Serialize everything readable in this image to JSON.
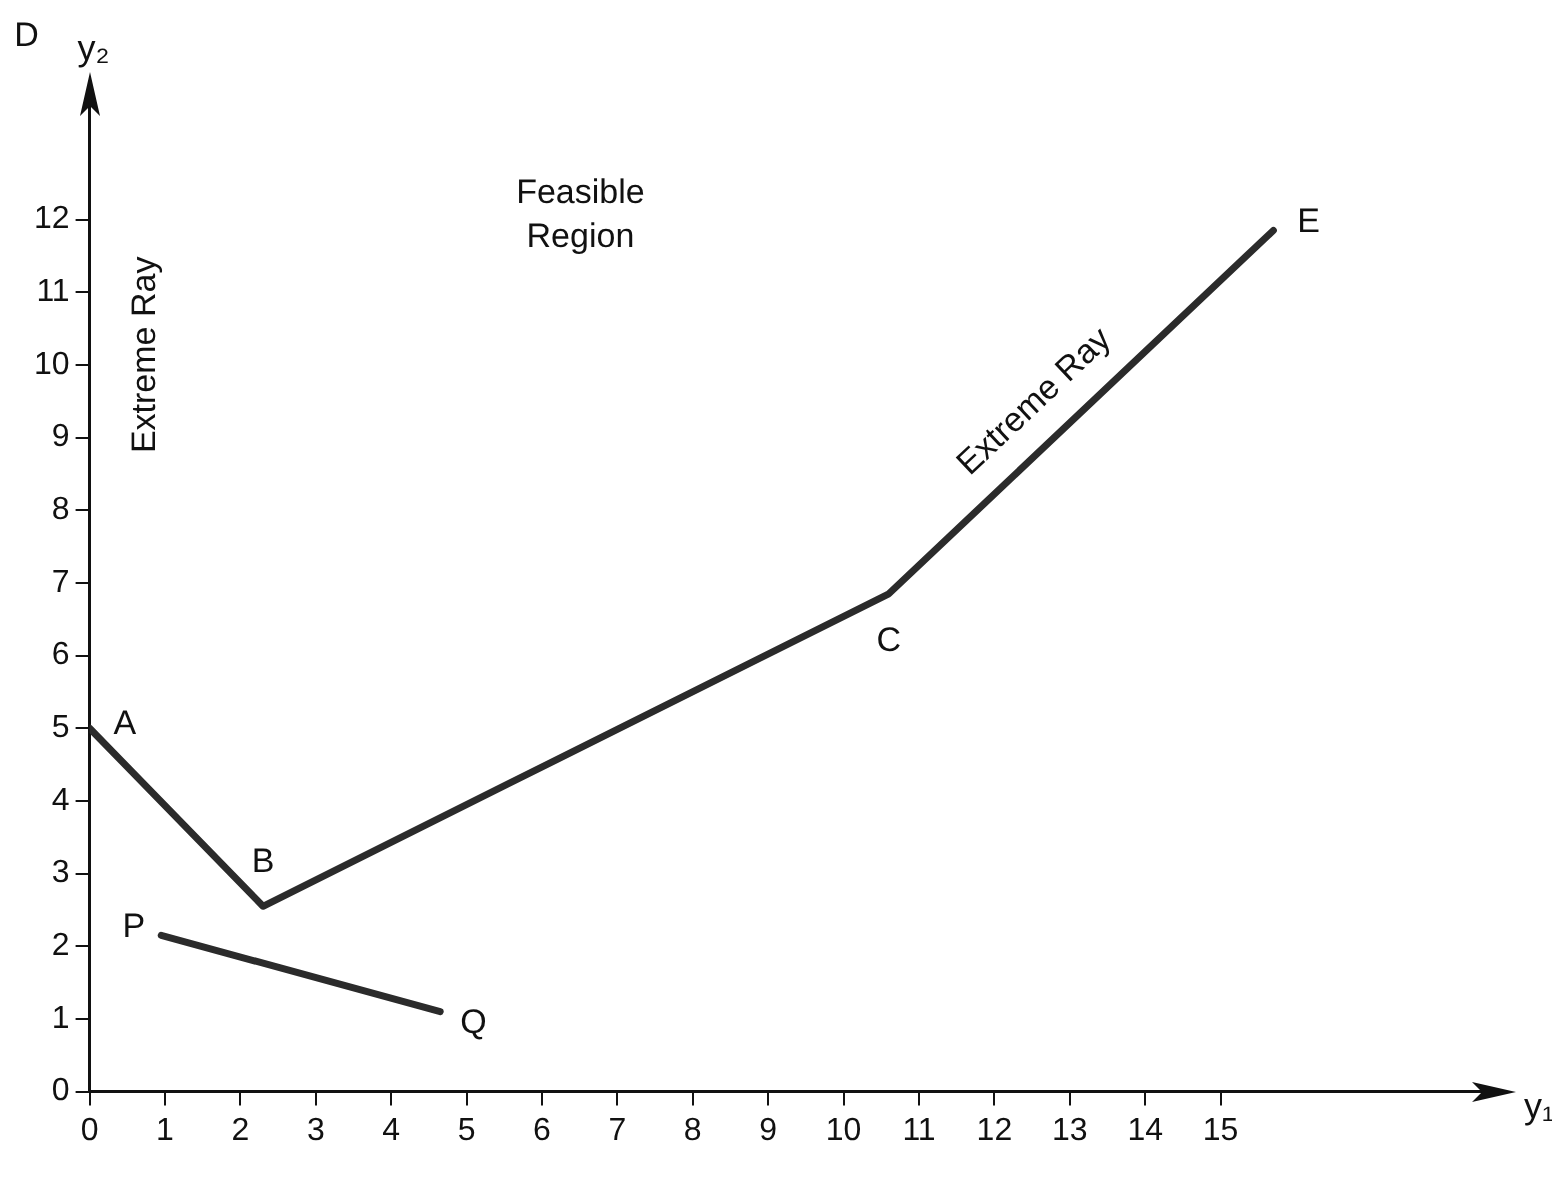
{
  "chart_data": {
    "type": "line",
    "xlabel": "y₁",
    "ylabel": "y₂",
    "xlim": [
      0,
      18.6
    ],
    "ylim": [
      0,
      13.7
    ],
    "xticks": [
      0,
      1,
      2,
      3,
      4,
      5,
      6,
      7,
      8,
      9,
      10,
      11,
      12,
      13,
      14,
      15
    ],
    "yticks": [
      0,
      1,
      2,
      3,
      4,
      5,
      6,
      7,
      8,
      9,
      10,
      11,
      12
    ],
    "grid": false,
    "legend": false,
    "marker": "none",
    "line_style": "solid",
    "series": [
      {
        "color": "#2b2b2b",
        "x": [
          0,
          2.3,
          10.6,
          15.7
        ],
        "values": [
          5,
          2.55,
          6.85,
          11.85
        ]
      },
      {
        "color": "#2b2b2b",
        "x": [
          0.95,
          4.65
        ],
        "values": [
          2.15,
          1.1
        ]
      }
    ],
    "annotations": [
      {
        "text": "A",
        "x": 0,
        "y": 5
      },
      {
        "text": "B",
        "x": 2.3,
        "y": 2.55
      },
      {
        "text": "C",
        "x": 10.6,
        "y": 6.85
      },
      "D",
      {
        "text": "E",
        "x": 15.7,
        "y": 11.85
      },
      {
        "text": "P",
        "x": 0.95,
        "y": 2.15
      },
      {
        "text": "Q",
        "x": 4.65,
        "y": 1.1
      },
      "Extreme Ray",
      "Feasible Region",
      {
        "text": "Extreme Ray",
        "x": 12.8,
        "y": 9.1
      }
    ]
  }
}
